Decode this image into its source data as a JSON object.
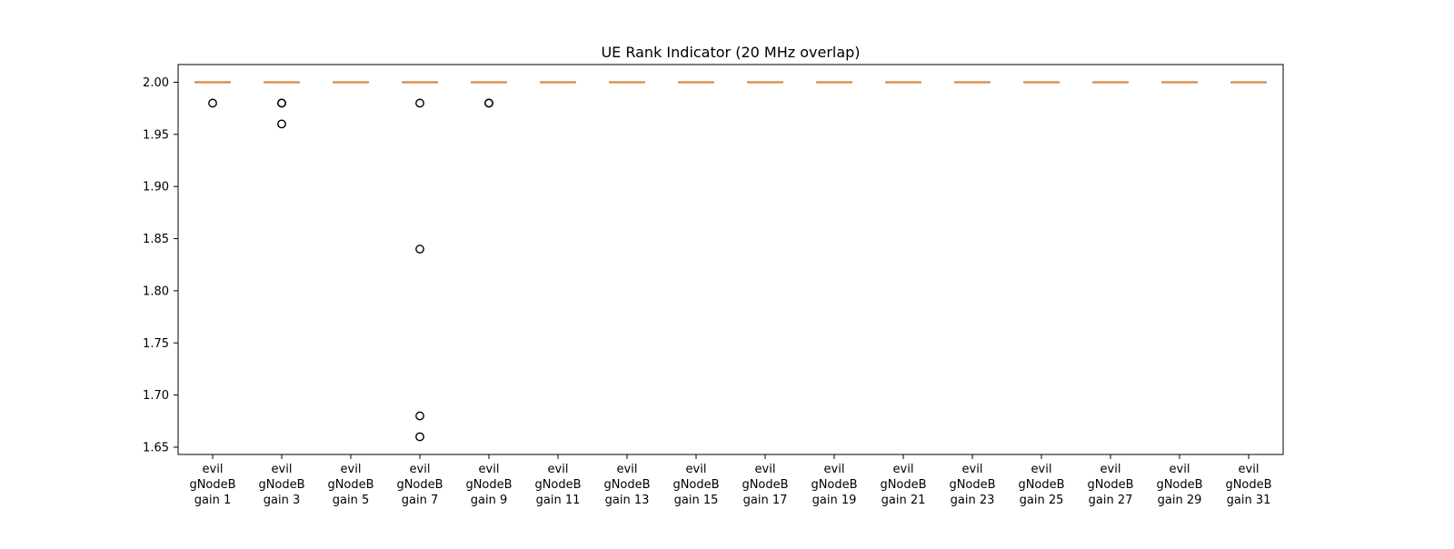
{
  "chart_data": {
    "type": "box",
    "title": "UE Rank Indicator (20 MHz overlap)",
    "xlabel": "",
    "ylabel": "",
    "ylim": [
      1.643,
      2.017
    ],
    "yticks": [
      1.65,
      1.7,
      1.75,
      1.8,
      1.85,
      1.9,
      1.95,
      2.0
    ],
    "ytick_labels": [
      "1.65",
      "1.70",
      "1.75",
      "1.80",
      "1.85",
      "1.90",
      "1.95",
      "2.00"
    ],
    "grid": false,
    "categories": [
      "evil\ngNodeB\ngain 1",
      "evil\ngNodeB\ngain 3",
      "evil\ngNodeB\ngain 5",
      "evil\ngNodeB\ngain 7",
      "evil\ngNodeB\ngain 9",
      "evil\ngNodeB\ngain 11",
      "evil\ngNodeB\ngain 13",
      "evil\ngNodeB\ngain 15",
      "evil\ngNodeB\ngain 17",
      "evil\ngNodeB\ngain 19",
      "evil\ngNodeB\ngain 21",
      "evil\ngNodeB\ngain 23",
      "evil\ngNodeB\ngain 25",
      "evil\ngNodeB\ngain 27",
      "evil\ngNodeB\ngain 29",
      "evil\ngNodeB\ngain 31"
    ],
    "boxes": [
      {
        "q1": 2.0,
        "median": 2.0,
        "q3": 2.0,
        "whisker_low": 2.0,
        "whisker_high": 2.0,
        "outliers": [
          1.98
        ]
      },
      {
        "q1": 2.0,
        "median": 2.0,
        "q3": 2.0,
        "whisker_low": 2.0,
        "whisker_high": 2.0,
        "outliers": [
          1.98,
          1.98,
          1.96
        ]
      },
      {
        "q1": 2.0,
        "median": 2.0,
        "q3": 2.0,
        "whisker_low": 2.0,
        "whisker_high": 2.0,
        "outliers": []
      },
      {
        "q1": 2.0,
        "median": 2.0,
        "q3": 2.0,
        "whisker_low": 2.0,
        "whisker_high": 2.0,
        "outliers": [
          1.98,
          1.84,
          1.68,
          1.66
        ]
      },
      {
        "q1": 2.0,
        "median": 2.0,
        "q3": 2.0,
        "whisker_low": 2.0,
        "whisker_high": 2.0,
        "outliers": [
          1.98,
          1.98
        ]
      },
      {
        "q1": 2.0,
        "median": 2.0,
        "q3": 2.0,
        "whisker_low": 2.0,
        "whisker_high": 2.0,
        "outliers": []
      },
      {
        "q1": 2.0,
        "median": 2.0,
        "q3": 2.0,
        "whisker_low": 2.0,
        "whisker_high": 2.0,
        "outliers": []
      },
      {
        "q1": 2.0,
        "median": 2.0,
        "q3": 2.0,
        "whisker_low": 2.0,
        "whisker_high": 2.0,
        "outliers": []
      },
      {
        "q1": 2.0,
        "median": 2.0,
        "q3": 2.0,
        "whisker_low": 2.0,
        "whisker_high": 2.0,
        "outliers": []
      },
      {
        "q1": 2.0,
        "median": 2.0,
        "q3": 2.0,
        "whisker_low": 2.0,
        "whisker_high": 2.0,
        "outliers": []
      },
      {
        "q1": 2.0,
        "median": 2.0,
        "q3": 2.0,
        "whisker_low": 2.0,
        "whisker_high": 2.0,
        "outliers": []
      },
      {
        "q1": 2.0,
        "median": 2.0,
        "q3": 2.0,
        "whisker_low": 2.0,
        "whisker_high": 2.0,
        "outliers": []
      },
      {
        "q1": 2.0,
        "median": 2.0,
        "q3": 2.0,
        "whisker_low": 2.0,
        "whisker_high": 2.0,
        "outliers": []
      },
      {
        "q1": 2.0,
        "median": 2.0,
        "q3": 2.0,
        "whisker_low": 2.0,
        "whisker_high": 2.0,
        "outliers": []
      },
      {
        "q1": 2.0,
        "median": 2.0,
        "q3": 2.0,
        "whisker_low": 2.0,
        "whisker_high": 2.0,
        "outliers": []
      },
      {
        "q1": 2.0,
        "median": 2.0,
        "q3": 2.0,
        "whisker_low": 2.0,
        "whisker_high": 2.0,
        "outliers": []
      }
    ],
    "colors": {
      "box": "#000000",
      "median": "#ff7f0e",
      "outlier_edge": "#000000",
      "axes": "#000000",
      "background": "#ffffff"
    }
  }
}
